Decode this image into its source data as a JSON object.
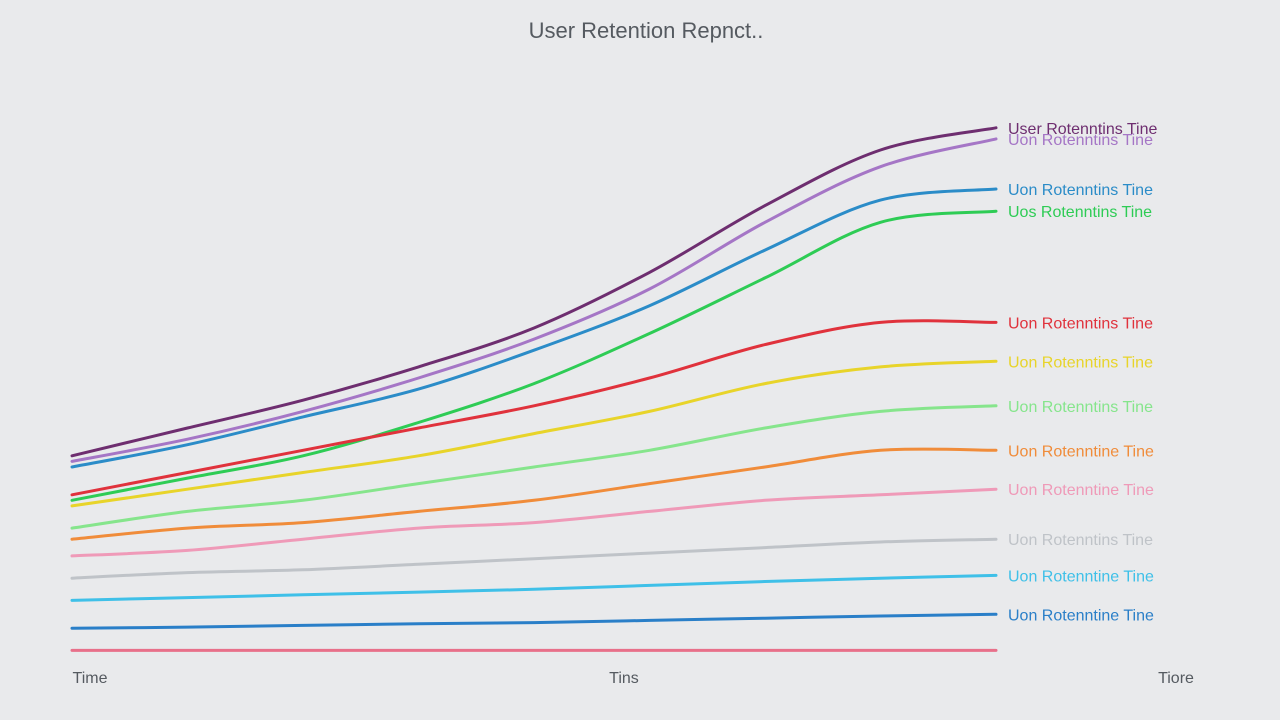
{
  "chart_data": {
    "type": "line",
    "title": "User Retention Repnct..",
    "x": [
      0,
      1,
      2,
      3,
      4,
      5,
      6,
      7,
      8
    ],
    "x_tick_labels": [
      "Time",
      "Tins",
      "Tiore"
    ],
    "ylim": [
      0,
      100
    ],
    "grid": false,
    "legend": "right",
    "series": [
      {
        "name": "User Rotenntins  Tine",
        "color": "#6e2e70",
        "values": [
          36,
          41,
          46,
          52,
          59,
          69,
          81,
          91,
          95
        ]
      },
      {
        "name": "Uon Rotenntins  Tine",
        "color": "#a576c6",
        "values": [
          35,
          39,
          44,
          50,
          57,
          66,
          78,
          88,
          93
        ]
      },
      {
        "name": "Uon Rotenntins  Tine",
        "color": "#2b8cc8",
        "values": [
          34,
          38,
          43,
          48,
          55,
          63,
          73,
          82,
          84
        ]
      },
      {
        "name": "Uos Rotenntins  Tine",
        "color": "#2ecc55",
        "values": [
          28,
          32,
          36,
          42,
          49,
          58,
          68,
          78,
          80
        ]
      },
      {
        "name": "Uon Rotenntins  Tine",
        "color": "#e0323c",
        "values": [
          29,
          33,
          37,
          41,
          45,
          50,
          56,
          60,
          60
        ]
      },
      {
        "name": "Uon Rotenntins  Tine",
        "color": "#e8d42a",
        "values": [
          27,
          30,
          33,
          36,
          40,
          44,
          49,
          52,
          53
        ]
      },
      {
        "name": "Uon Rotenntins  Tine",
        "color": "#86e58c",
        "values": [
          23,
          26,
          28,
          31,
          34,
          37,
          41,
          44,
          45
        ]
      },
      {
        "name": "Uon Rotenntine  Tine",
        "color": "#f08c3a",
        "values": [
          21,
          23,
          24,
          26,
          28,
          31,
          34,
          37,
          37
        ]
      },
      {
        "name": "Uon Rotenntine  Tine",
        "color": "#ef9ab8",
        "values": [
          18,
          19,
          21,
          23,
          24,
          26,
          28,
          29,
          30
        ]
      },
      {
        "name": "Uon Rotenntins  Tine",
        "color": "#bfc3c8",
        "values": [
          14,
          15,
          15.5,
          16.5,
          17.5,
          18.5,
          19.5,
          20.5,
          21
        ]
      },
      {
        "name": "Uon Rotenntine  Tine",
        "color": "#3fc0e8",
        "values": [
          10,
          10.5,
          11,
          11.5,
          12,
          12.7,
          13.4,
          14,
          14.5
        ]
      },
      {
        "name": "Uon Rotenntine  Tine",
        "color": "#2a7fc8",
        "values": [
          5,
          5.2,
          5.5,
          5.8,
          6,
          6.4,
          6.8,
          7.2,
          7.5
        ]
      },
      {
        "name": "",
        "color": "#e8708a",
        "values": [
          1,
          1,
          1,
          1,
          1,
          1,
          1,
          1,
          1
        ]
      }
    ]
  }
}
